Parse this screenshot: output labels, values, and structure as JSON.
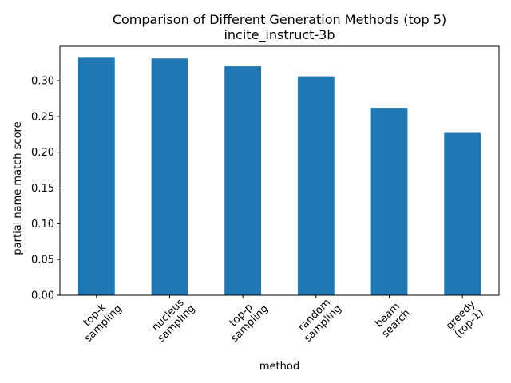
{
  "chart_data": {
    "type": "bar",
    "title": "Comparison of Different Generation Methods (top 5)",
    "subtitle": "incite_instruct-3b",
    "xlabel": "method",
    "ylabel": "partial name match score",
    "categories": [
      [
        "top-k",
        "sampling"
      ],
      [
        "nucleus",
        "sampling"
      ],
      [
        "top-p",
        "sampling"
      ],
      [
        "random",
        "sampling"
      ],
      [
        "beam",
        "search"
      ],
      [
        "greedy",
        "(top-1)"
      ]
    ],
    "values": [
      0.332,
      0.331,
      0.32,
      0.306,
      0.262,
      0.227
    ],
    "ylim": [
      0,
      0.348
    ],
    "yticks": [
      0.0,
      0.05,
      0.1,
      0.15,
      0.2,
      0.25,
      0.3
    ],
    "ytick_labels": [
      "0.00",
      "0.05",
      "0.10",
      "0.15",
      "0.20",
      "0.25",
      "0.30"
    ],
    "grid": false,
    "legend": "none",
    "bar_color": "#1f77b4"
  }
}
